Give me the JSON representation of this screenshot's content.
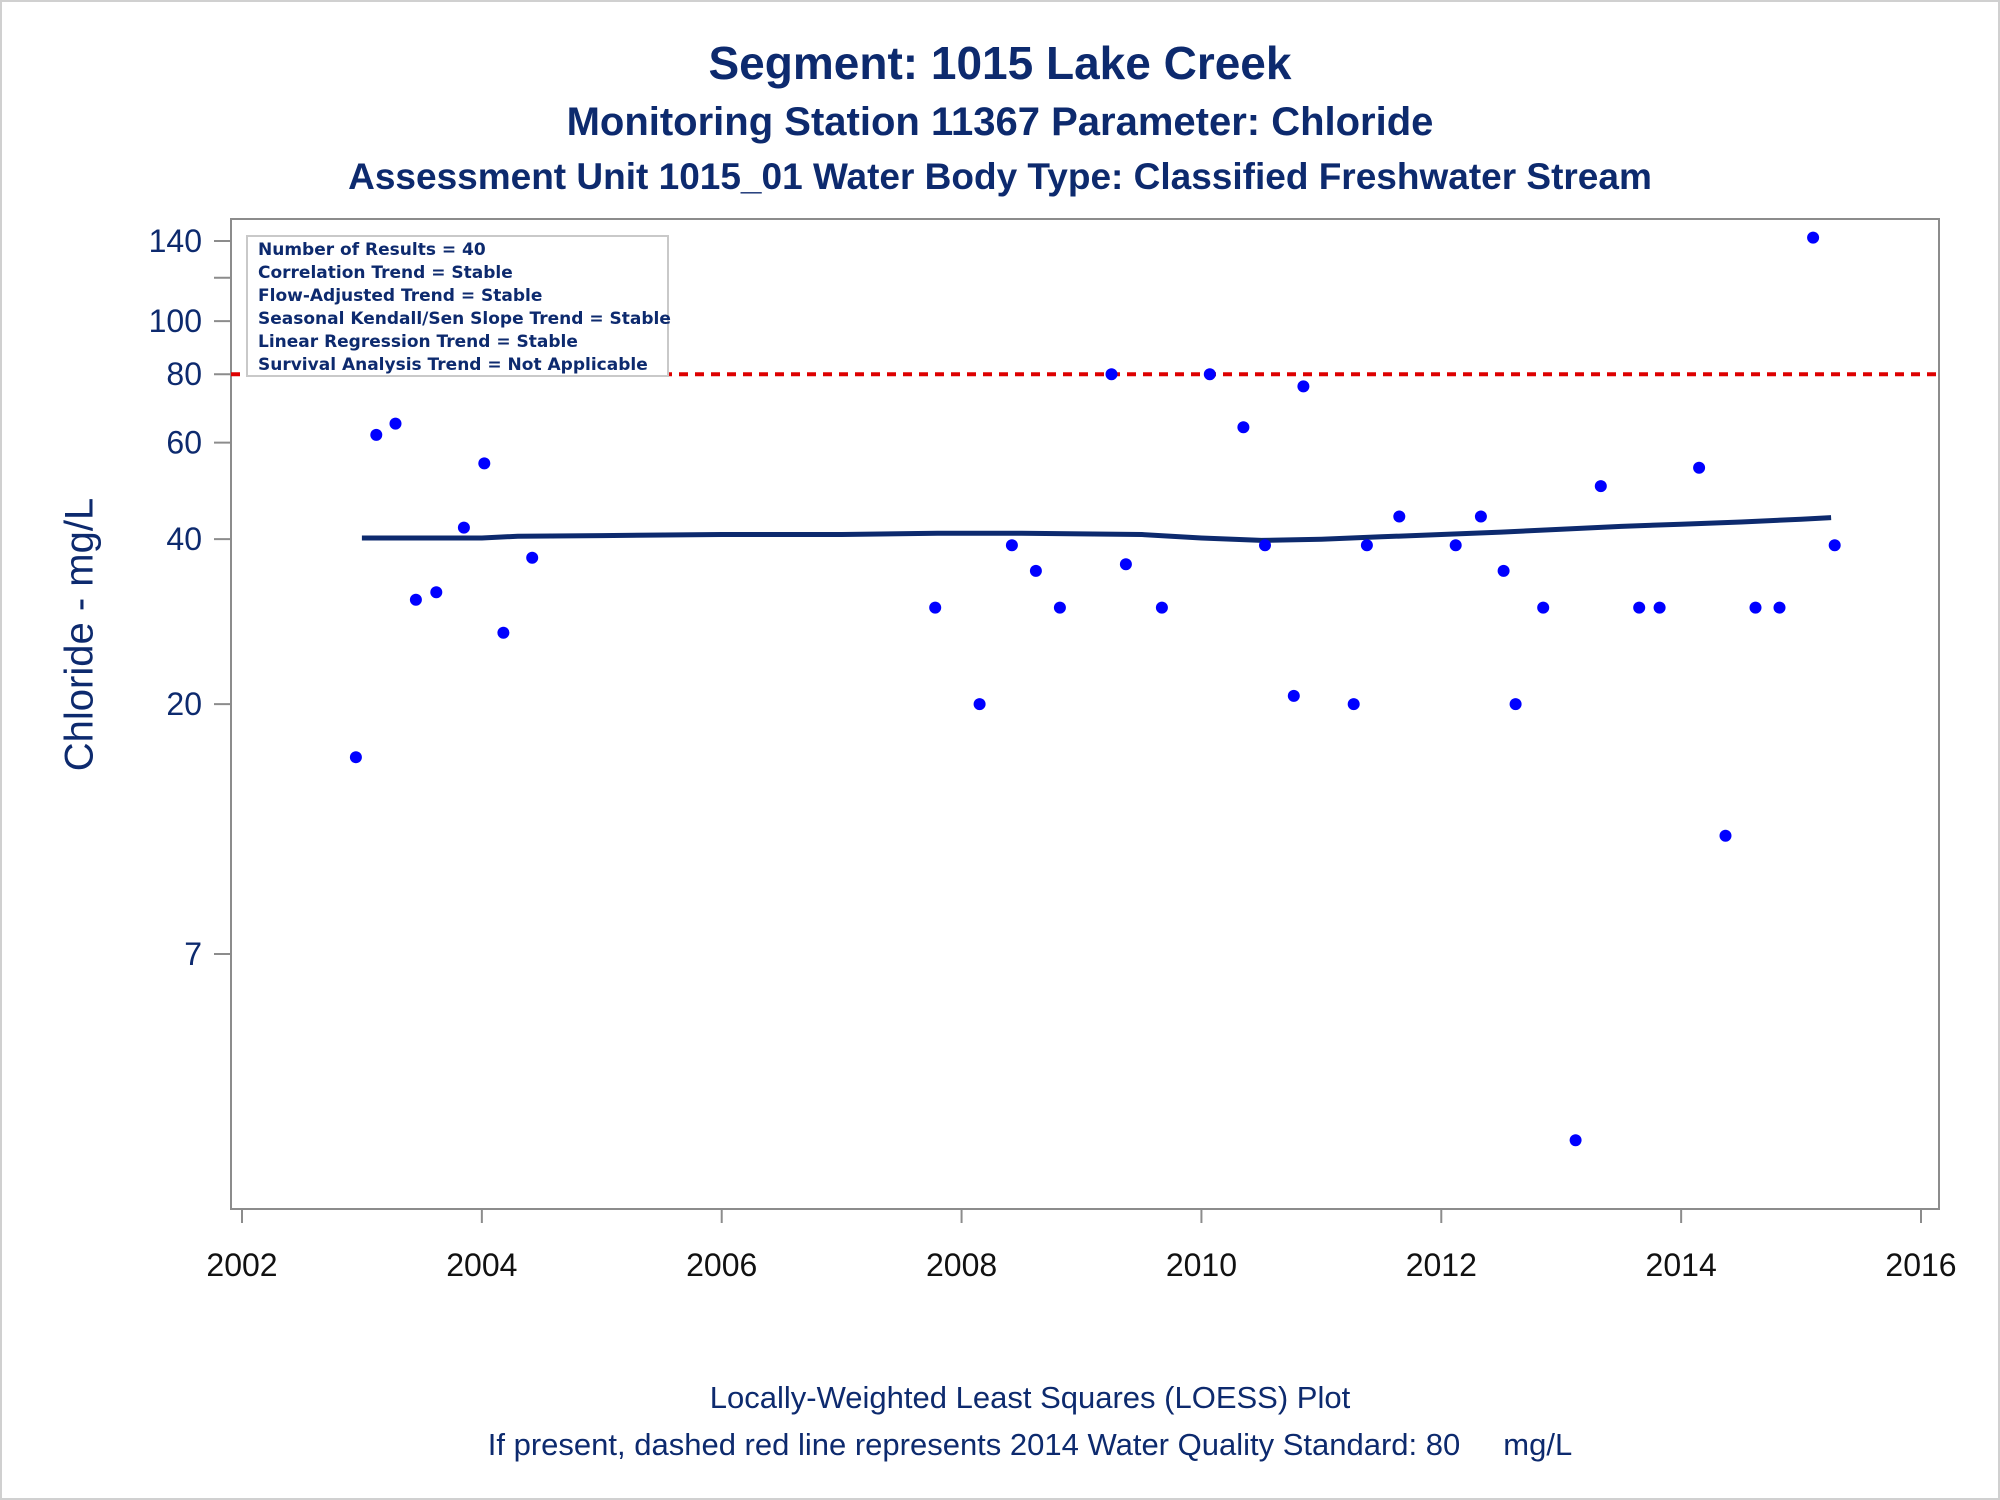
{
  "header": {
    "title": "Segment: 1015  Lake Creek",
    "subtitle": "Monitoring Station 11367 Parameter: Chloride",
    "subtitle2": "Assessment Unit 1015_01   Water Body Type: Classified Freshwater Stream"
  },
  "footer": {
    "line1": "Locally-Weighted Least Squares (LOESS) Plot",
    "line2": "If present, dashed red line represents 2014 Water Quality Standard: 80     mg/L"
  },
  "stats_box": [
    "Number of Results = 40",
    "Correlation Trend = Stable",
    "Flow-Adjusted Trend = Stable",
    "Seasonal Kendall/Sen Slope Trend = Stable",
    "Linear Regression Trend = Stable",
    "Survival Analysis Trend = Not Applicable"
  ],
  "colors": {
    "points": "#0000ff",
    "loess": "#0d2a6e",
    "standard": "#dd0000",
    "text": "#0d2a6e"
  },
  "chart_data": {
    "type": "scatter",
    "ylabel": "Chloride - mg/L",
    "xlabel": "",
    "yscale": "log",
    "xlim": [
      2002,
      2016
    ],
    "ylim": [
      3.2,
      150
    ],
    "xticks": [
      2002,
      2004,
      2006,
      2008,
      2010,
      2012,
      2014,
      2016
    ],
    "yticks": [
      7,
      20,
      40,
      60,
      80,
      100,
      140
    ],
    "yminor_ticks": [
      120
    ],
    "grid": false,
    "standard_line": {
      "value": 80,
      "style": "dashed"
    },
    "series": [
      {
        "type": "scatter",
        "x": [
          2002.95,
          2003.12,
          2003.28,
          2003.45,
          2003.62,
          2003.85,
          2004.02,
          2004.18,
          2004.42,
          2007.78,
          2008.15,
          2008.42,
          2008.62,
          2008.82,
          2009.25,
          2009.37,
          2009.67,
          2010.07,
          2010.35,
          2010.53,
          2010.77,
          2010.85,
          2011.27,
          2011.38,
          2011.65,
          2012.12,
          2012.33,
          2012.52,
          2012.62,
          2012.85,
          2013.12,
          2013.33,
          2013.65,
          2013.82,
          2014.15,
          2014.37,
          2014.62,
          2014.82,
          2015.1,
          2015.28
        ],
        "values": [
          16,
          62,
          65,
          31,
          32,
          42,
          55,
          27,
          37,
          30,
          20,
          39,
          35,
          30,
          80,
          36,
          30,
          80,
          64,
          39,
          20.7,
          76,
          20,
          39,
          44,
          39,
          44,
          35,
          20,
          30,
          3.2,
          50,
          30,
          30,
          54,
          11.5,
          30,
          30,
          142,
          39
        ]
      },
      {
        "type": "line",
        "x": [
          2003.0,
          2004.0,
          2004.3,
          2005.0,
          2006.0,
          2007.0,
          2007.8,
          2008.5,
          2009.0,
          2009.5,
          2010.0,
          2010.5,
          2011.0,
          2011.5,
          2012.0,
          2012.5,
          2013.0,
          2013.5,
          2014.0,
          2014.5,
          2015.0,
          2015.25
        ],
        "values": [
          40.2,
          40.2,
          40.5,
          40.6,
          40.8,
          40.8,
          41.0,
          41.0,
          40.9,
          40.8,
          40.2,
          39.8,
          40.0,
          40.4,
          40.8,
          41.2,
          41.7,
          42.2,
          42.6,
          43.0,
          43.5,
          43.8
        ]
      }
    ]
  }
}
